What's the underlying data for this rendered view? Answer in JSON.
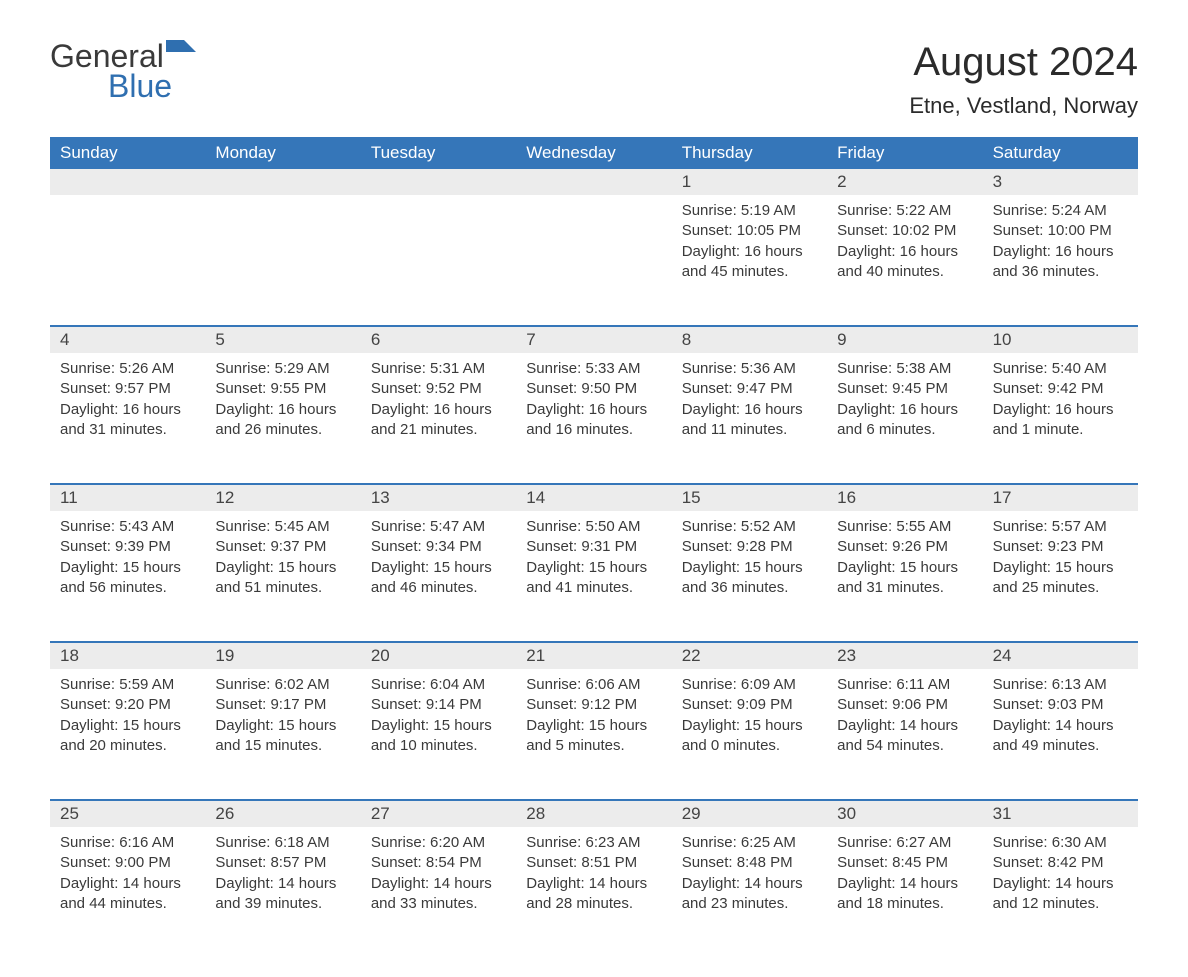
{
  "brand": {
    "text_general": "General",
    "text_blue": "Blue",
    "flag_color": "#2f6fb0"
  },
  "header": {
    "month_title": "August 2024",
    "location": "Etne, Vestland, Norway"
  },
  "colors": {
    "header_bg": "#3576b9",
    "header_text": "#ffffff",
    "daynum_bg": "#ececec",
    "rule": "#3576b9",
    "body_text": "#3a3a3a",
    "background": "#ffffff"
  },
  "day_names": [
    "Sunday",
    "Monday",
    "Tuesday",
    "Wednesday",
    "Thursday",
    "Friday",
    "Saturday"
  ],
  "weeks": [
    {
      "days": [
        {
          "num": "",
          "lines": []
        },
        {
          "num": "",
          "lines": []
        },
        {
          "num": "",
          "lines": []
        },
        {
          "num": "",
          "lines": []
        },
        {
          "num": "1",
          "lines": [
            "Sunrise: 5:19 AM",
            "Sunset: 10:05 PM",
            "Daylight: 16 hours",
            "and 45 minutes."
          ]
        },
        {
          "num": "2",
          "lines": [
            "Sunrise: 5:22 AM",
            "Sunset: 10:02 PM",
            "Daylight: 16 hours",
            "and 40 minutes."
          ]
        },
        {
          "num": "3",
          "lines": [
            "Sunrise: 5:24 AM",
            "Sunset: 10:00 PM",
            "Daylight: 16 hours",
            "and 36 minutes."
          ]
        }
      ]
    },
    {
      "days": [
        {
          "num": "4",
          "lines": [
            "Sunrise: 5:26 AM",
            "Sunset: 9:57 PM",
            "Daylight: 16 hours",
            "and 31 minutes."
          ]
        },
        {
          "num": "5",
          "lines": [
            "Sunrise: 5:29 AM",
            "Sunset: 9:55 PM",
            "Daylight: 16 hours",
            "and 26 minutes."
          ]
        },
        {
          "num": "6",
          "lines": [
            "Sunrise: 5:31 AM",
            "Sunset: 9:52 PM",
            "Daylight: 16 hours",
            "and 21 minutes."
          ]
        },
        {
          "num": "7",
          "lines": [
            "Sunrise: 5:33 AM",
            "Sunset: 9:50 PM",
            "Daylight: 16 hours",
            "and 16 minutes."
          ]
        },
        {
          "num": "8",
          "lines": [
            "Sunrise: 5:36 AM",
            "Sunset: 9:47 PM",
            "Daylight: 16 hours",
            "and 11 minutes."
          ]
        },
        {
          "num": "9",
          "lines": [
            "Sunrise: 5:38 AM",
            "Sunset: 9:45 PM",
            "Daylight: 16 hours",
            "and 6 minutes."
          ]
        },
        {
          "num": "10",
          "lines": [
            "Sunrise: 5:40 AM",
            "Sunset: 9:42 PM",
            "Daylight: 16 hours",
            "and 1 minute."
          ]
        }
      ]
    },
    {
      "days": [
        {
          "num": "11",
          "lines": [
            "Sunrise: 5:43 AM",
            "Sunset: 9:39 PM",
            "Daylight: 15 hours",
            "and 56 minutes."
          ]
        },
        {
          "num": "12",
          "lines": [
            "Sunrise: 5:45 AM",
            "Sunset: 9:37 PM",
            "Daylight: 15 hours",
            "and 51 minutes."
          ]
        },
        {
          "num": "13",
          "lines": [
            "Sunrise: 5:47 AM",
            "Sunset: 9:34 PM",
            "Daylight: 15 hours",
            "and 46 minutes."
          ]
        },
        {
          "num": "14",
          "lines": [
            "Sunrise: 5:50 AM",
            "Sunset: 9:31 PM",
            "Daylight: 15 hours",
            "and 41 minutes."
          ]
        },
        {
          "num": "15",
          "lines": [
            "Sunrise: 5:52 AM",
            "Sunset: 9:28 PM",
            "Daylight: 15 hours",
            "and 36 minutes."
          ]
        },
        {
          "num": "16",
          "lines": [
            "Sunrise: 5:55 AM",
            "Sunset: 9:26 PM",
            "Daylight: 15 hours",
            "and 31 minutes."
          ]
        },
        {
          "num": "17",
          "lines": [
            "Sunrise: 5:57 AM",
            "Sunset: 9:23 PM",
            "Daylight: 15 hours",
            "and 25 minutes."
          ]
        }
      ]
    },
    {
      "days": [
        {
          "num": "18",
          "lines": [
            "Sunrise: 5:59 AM",
            "Sunset: 9:20 PM",
            "Daylight: 15 hours",
            "and 20 minutes."
          ]
        },
        {
          "num": "19",
          "lines": [
            "Sunrise: 6:02 AM",
            "Sunset: 9:17 PM",
            "Daylight: 15 hours",
            "and 15 minutes."
          ]
        },
        {
          "num": "20",
          "lines": [
            "Sunrise: 6:04 AM",
            "Sunset: 9:14 PM",
            "Daylight: 15 hours",
            "and 10 minutes."
          ]
        },
        {
          "num": "21",
          "lines": [
            "Sunrise: 6:06 AM",
            "Sunset: 9:12 PM",
            "Daylight: 15 hours",
            "and 5 minutes."
          ]
        },
        {
          "num": "22",
          "lines": [
            "Sunrise: 6:09 AM",
            "Sunset: 9:09 PM",
            "Daylight: 15 hours",
            "and 0 minutes."
          ]
        },
        {
          "num": "23",
          "lines": [
            "Sunrise: 6:11 AM",
            "Sunset: 9:06 PM",
            "Daylight: 14 hours",
            "and 54 minutes."
          ]
        },
        {
          "num": "24",
          "lines": [
            "Sunrise: 6:13 AM",
            "Sunset: 9:03 PM",
            "Daylight: 14 hours",
            "and 49 minutes."
          ]
        }
      ]
    },
    {
      "days": [
        {
          "num": "25",
          "lines": [
            "Sunrise: 6:16 AM",
            "Sunset: 9:00 PM",
            "Daylight: 14 hours",
            "and 44 minutes."
          ]
        },
        {
          "num": "26",
          "lines": [
            "Sunrise: 6:18 AM",
            "Sunset: 8:57 PM",
            "Daylight: 14 hours",
            "and 39 minutes."
          ]
        },
        {
          "num": "27",
          "lines": [
            "Sunrise: 6:20 AM",
            "Sunset: 8:54 PM",
            "Daylight: 14 hours",
            "and 33 minutes."
          ]
        },
        {
          "num": "28",
          "lines": [
            "Sunrise: 6:23 AM",
            "Sunset: 8:51 PM",
            "Daylight: 14 hours",
            "and 28 minutes."
          ]
        },
        {
          "num": "29",
          "lines": [
            "Sunrise: 6:25 AM",
            "Sunset: 8:48 PM",
            "Daylight: 14 hours",
            "and 23 minutes."
          ]
        },
        {
          "num": "30",
          "lines": [
            "Sunrise: 6:27 AM",
            "Sunset: 8:45 PM",
            "Daylight: 14 hours",
            "and 18 minutes."
          ]
        },
        {
          "num": "31",
          "lines": [
            "Sunrise: 6:30 AM",
            "Sunset: 8:42 PM",
            "Daylight: 14 hours",
            "and 12 minutes."
          ]
        }
      ]
    }
  ]
}
